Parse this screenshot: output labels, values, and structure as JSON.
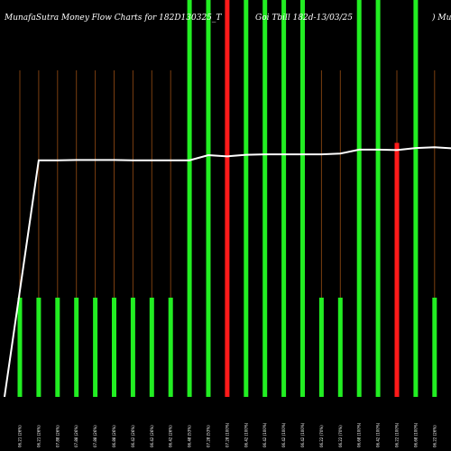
{
  "chart_data": {
    "type": "bar",
    "title_left": "MunafaSutra  Money Flow  Charts for 182D130325_T",
    "title_mid": "Goi   Tbill 182d-13/03/25",
    "title_right": ") Munafa",
    "categories": [
      "06.21 (26%)",
      "06.21 (26%)",
      "07.88 (26%)",
      "07.88 (26%)",
      "07.88 (26%)",
      "06.88 (26%)",
      "06.42 (26%)",
      "06.42 (26%)",
      "06.42 (26%)",
      "06.48 (53%)",
      "07.28 (53%)",
      "07.28 (100%)",
      "06.42 (100%)",
      "06.42 (100%)",
      "06.42 (100%)",
      "06.42 (100%)",
      "06.22 (70%)",
      "06.22 (70%)",
      "06.68 (100%)",
      "06.42 (100%)",
      "06.22 (100%)",
      "06.68 (100%)",
      "06.22 (26%)",
      "06.42 (100%)"
    ],
    "bar_values": [
      25,
      25,
      25,
      25,
      25,
      25,
      25,
      25,
      25,
      110,
      110,
      110,
      110,
      110,
      110,
      110,
      25,
      25,
      110,
      100,
      64,
      110,
      25,
      50
    ],
    "bar_colors": [
      "#22ee22",
      "#22ee22",
      "#22ee22",
      "#22ee22",
      "#22ee22",
      "#22ee22",
      "#22ee22",
      "#22ee22",
      "#22ee22",
      "#22ee22",
      "#22ee22",
      "#ff1a1a",
      "#22ee22",
      "#22ee22",
      "#22ee22",
      "#22ee22",
      "#22ee22",
      "#22ee22",
      "#22ee22",
      "#22ee22",
      "#ff1a1a",
      "#22ee22",
      "#22ee22",
      "#22ee22"
    ],
    "line_values": [
      0,
      59.6,
      59.6,
      59.7,
      59.7,
      59.7,
      59.6,
      59.6,
      59.6,
      59.6,
      60.9,
      60.6,
      61.0,
      61.1,
      61.1,
      61.1,
      61.1,
      61.3,
      62.3,
      62.3,
      62.2,
      62.7,
      62.9,
      62.6
    ],
    "ylim": [
      0,
      100
    ],
    "grid_color": "#7a3e10",
    "line_color": "#ffffff"
  }
}
